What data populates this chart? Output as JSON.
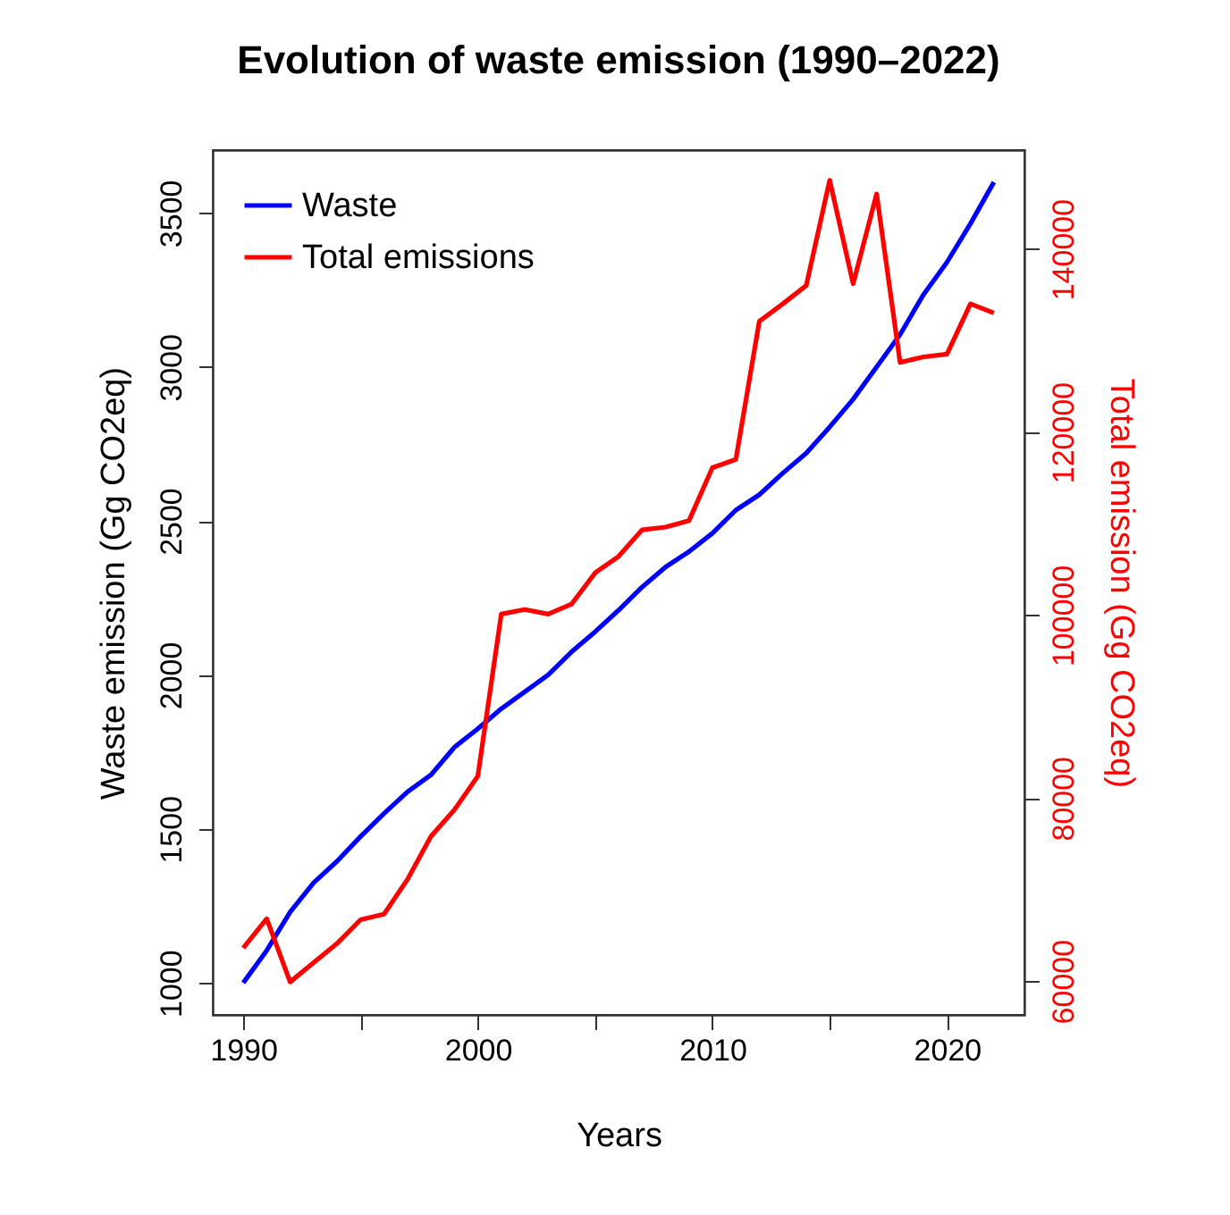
{
  "chart_data": {
    "type": "line",
    "title": "Evolution of waste emission (1990–2022)",
    "xlabel": "Years",
    "ylabel": "Waste emission (Gg CO2eq)",
    "y2label": "Total emission (Gg CO2eq)",
    "x": [
      1990,
      1991,
      1992,
      1993,
      1994,
      1995,
      1996,
      1997,
      1998,
      1999,
      2000,
      2001,
      2002,
      2003,
      2004,
      2005,
      2006,
      2007,
      2008,
      2009,
      2010,
      2011,
      2012,
      2013,
      2014,
      2015,
      2016,
      2017,
      2018,
      2019,
      2020,
      2021,
      2022
    ],
    "series": [
      {
        "name": "Waste",
        "color": "#0000ff",
        "values": [
          1000,
          1105,
          1230,
          1325,
          1395,
          1475,
          1550,
          1620,
          1675,
          1765,
          1825,
          1890,
          1945,
          2000,
          2075,
          2140,
          2210,
          2285,
          2350,
          2400,
          2460,
          2535,
          2585,
          2655,
          2720,
          2805,
          2895,
          3000,
          3105,
          3235,
          3340,
          3465,
          3600
        ]
      },
      {
        "name": "Total emissions",
        "color": "#ff0000",
        "axis": "y2",
        "values": [
          63600,
          66800,
          59900,
          62000,
          64100,
          66700,
          67300,
          71100,
          75800,
          78700,
          82400,
          100100,
          100600,
          100100,
          101200,
          104600,
          106400,
          109300,
          109600,
          110300,
          116100,
          117000,
          132100,
          134000,
          136000,
          147500,
          136200,
          146000,
          127600,
          128200,
          128500,
          134000,
          133000
        ]
      }
    ],
    "xlim": [
      1988.7,
      2023.3
    ],
    "xticks": [
      1990,
      {
        "value": 1995,
        "label": null
      },
      2000,
      {
        "value": 2005,
        "label": null
      },
      2010,
      {
        "value": 2015,
        "label": null
      },
      2020
    ],
    "ylim": [
      896,
      3704
    ],
    "yticks": [
      1000,
      1500,
      2000,
      2500,
      3000,
      3500
    ],
    "y2lim": [
      56300,
      150800
    ],
    "y2ticks": [
      60000,
      80000,
      100000,
      120000,
      140000
    ],
    "legend": "top left"
  }
}
